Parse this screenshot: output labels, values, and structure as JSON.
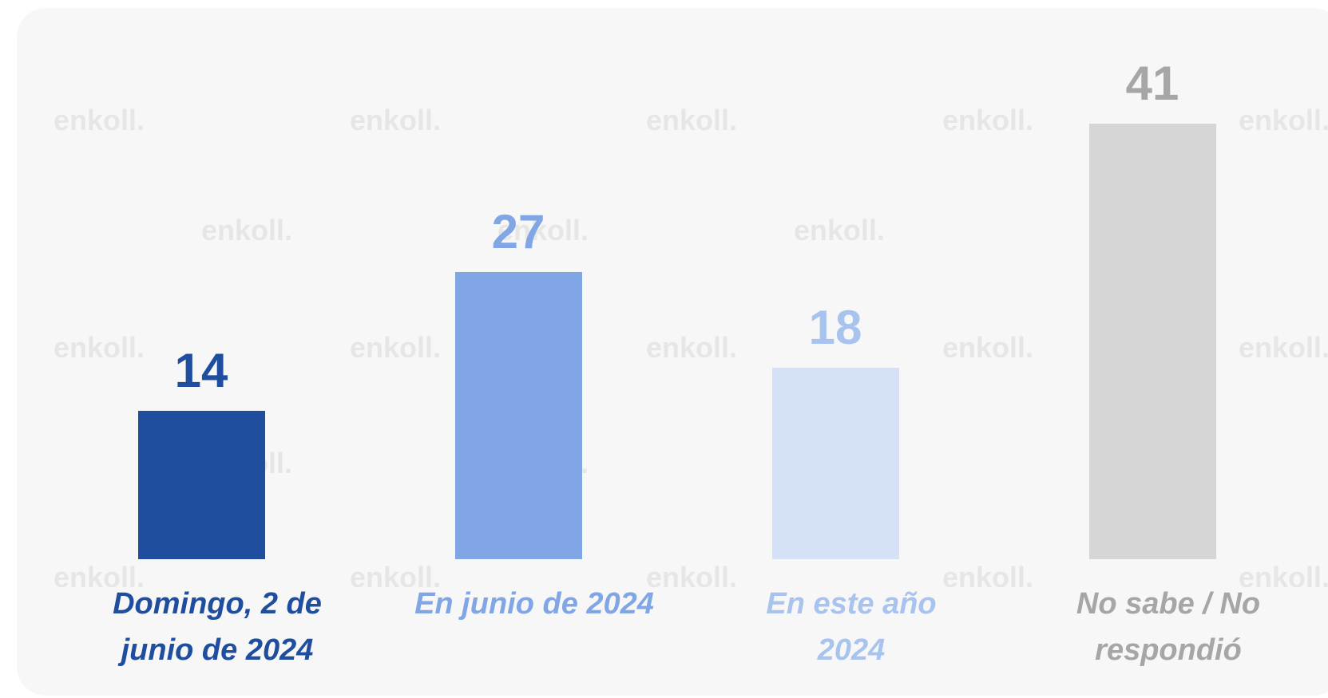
{
  "chart_data": {
    "type": "bar",
    "categories": [
      "Domingo, 2 de junio de 2024",
      "En junio de 2024",
      "En este año 2024",
      "No sabe / No respondió"
    ],
    "values": [
      14,
      27,
      18,
      41
    ],
    "colors": [
      "#1f4e9f",
      "#80a6e6",
      "#d5e1f7",
      "#d6d6d6"
    ],
    "label_colors": [
      "#1f4e9f",
      "#80a6e6",
      "#a9c3ef",
      "#a6a6a6"
    ],
    "watermark": "enkoll."
  }
}
